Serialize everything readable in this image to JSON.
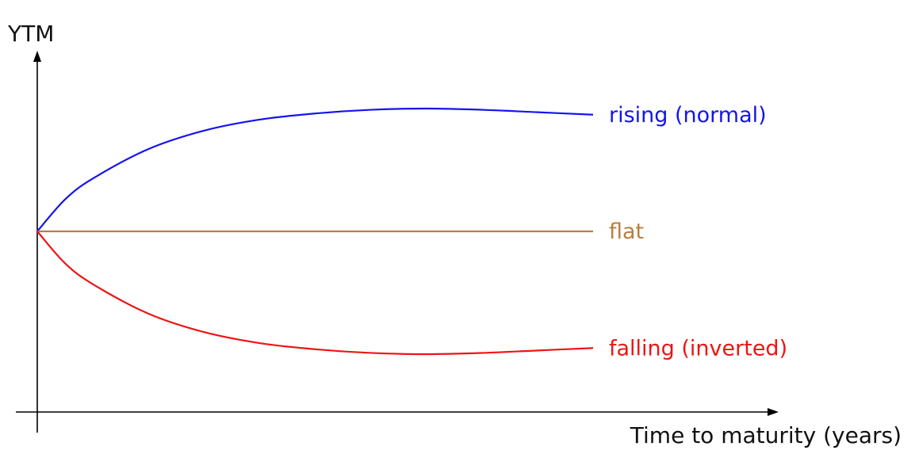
{
  "chart_data": {
    "type": "line",
    "ylabel": "YTM",
    "xlabel": "Time to maturity (years)",
    "xlim": [
      0,
      10
    ],
    "ylim": [
      -1.5,
      1.5
    ],
    "grid": false,
    "legend": "inline-right",
    "series": [
      {
        "name": "rising (normal)",
        "color": "#1414ee",
        "x": [
          0,
          0.5,
          1,
          2,
          3,
          4,
          5,
          6,
          7,
          8,
          9,
          10
        ],
        "y": [
          0,
          0.26,
          0.43,
          0.67,
          0.82,
          0.91,
          0.96,
          0.99,
          1.0,
          0.99,
          0.97,
          0.95
        ]
      },
      {
        "name": "flat",
        "color": "#b8803a",
        "x": [
          0,
          10
        ],
        "y": [
          0,
          0
        ]
      },
      {
        "name": "falling (inverted)",
        "color": "#ee1414",
        "x": [
          0,
          0.5,
          1,
          2,
          3,
          4,
          5,
          6,
          7,
          8,
          9,
          10
        ],
        "y": [
          0,
          -0.26,
          -0.43,
          -0.67,
          -0.82,
          -0.91,
          -0.96,
          -0.99,
          -1.0,
          -0.99,
          -0.97,
          -0.95
        ]
      }
    ]
  }
}
